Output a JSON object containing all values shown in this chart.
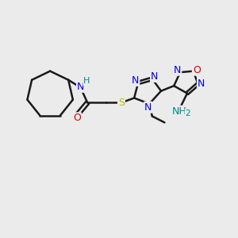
{
  "bg_color": "#ebebeb",
  "bond_color": "#1a1a1a",
  "bond_width": 1.8,
  "figsize": [
    3.0,
    3.0
  ],
  "dpi": 100,
  "N_color": "#0000ee",
  "O_color": "#dd0000",
  "S_color": "#bbbb00",
  "H_color": "#008888",
  "xlim": [
    0,
    10
  ],
  "ylim": [
    0,
    10
  ]
}
